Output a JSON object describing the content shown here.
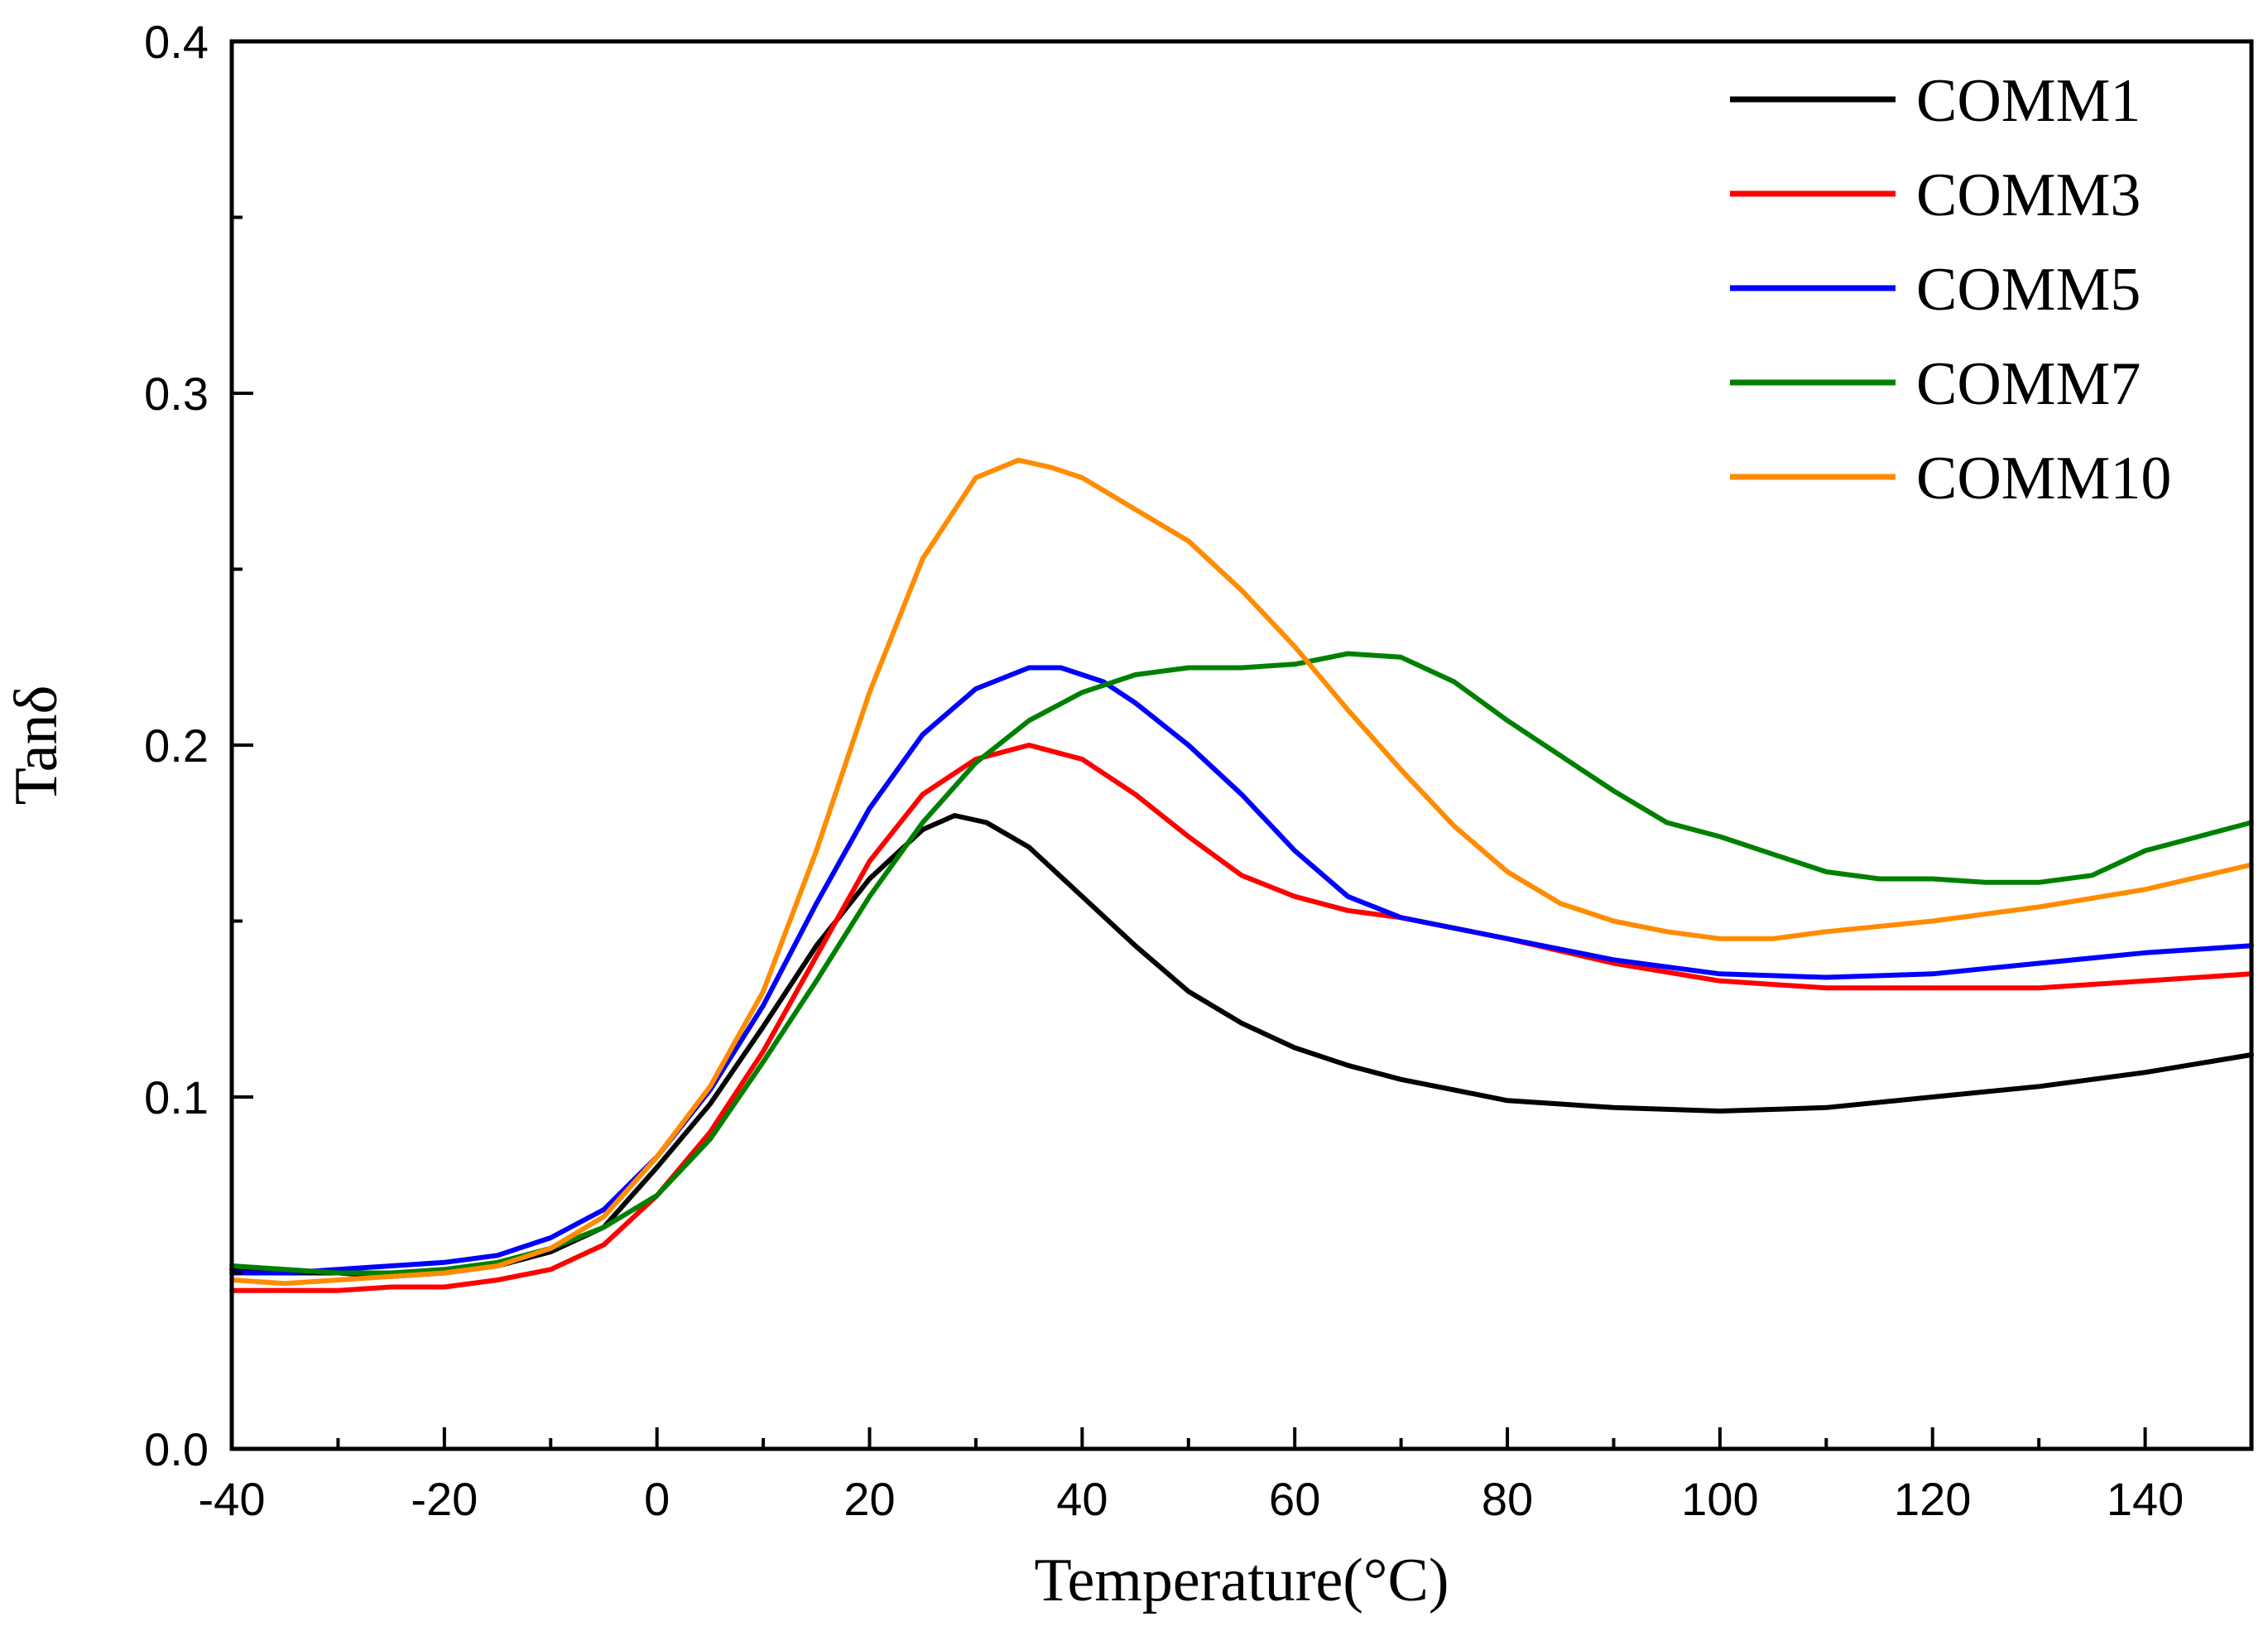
{
  "chart_data": {
    "type": "line",
    "title": "",
    "xlabel": "Temperature(°C)",
    "ylabel": "Tanδ",
    "xlim": [
      -40,
      150
    ],
    "ylim": [
      0.0,
      0.4
    ],
    "x_ticks": [
      -40,
      -20,
      0,
      20,
      40,
      60,
      80,
      100,
      120,
      140
    ],
    "x_tick_labels": [
      "-40",
      "-20",
      "0",
      "20",
      "40",
      "60",
      "80",
      "100",
      "120",
      "140"
    ],
    "y_ticks": [
      0.0,
      0.1,
      0.2,
      0.3,
      0.4
    ],
    "y_tick_labels": [
      "0.0",
      "0.1",
      "0.2",
      "0.3",
      "0.4"
    ],
    "grid": false,
    "legend_position": "top-right",
    "series": [
      {
        "name": "COMM1",
        "color": "#000000",
        "points": [
          [
            -40,
            0.051
          ],
          [
            -35,
            0.05
          ],
          [
            -30,
            0.05
          ],
          [
            -25,
            0.049
          ],
          [
            -20,
            0.05
          ],
          [
            -15,
            0.052
          ],
          [
            -10,
            0.056
          ],
          [
            -5,
            0.063
          ],
          [
            0,
            0.08
          ],
          [
            5,
            0.098
          ],
          [
            10,
            0.12
          ],
          [
            15,
            0.143
          ],
          [
            20,
            0.162
          ],
          [
            25,
            0.176
          ],
          [
            28,
            0.18
          ],
          [
            31,
            0.178
          ],
          [
            35,
            0.171
          ],
          [
            40,
            0.157
          ],
          [
            45,
            0.143
          ],
          [
            50,
            0.13
          ],
          [
            55,
            0.121
          ],
          [
            60,
            0.114
          ],
          [
            65,
            0.109
          ],
          [
            70,
            0.105
          ],
          [
            75,
            0.102
          ],
          [
            80,
            0.099
          ],
          [
            90,
            0.097
          ],
          [
            100,
            0.096
          ],
          [
            110,
            0.097
          ],
          [
            120,
            0.1
          ],
          [
            130,
            0.103
          ],
          [
            140,
            0.107
          ],
          [
            150,
            0.112
          ]
        ]
      },
      {
        "name": "COMM3",
        "color": "#ff0000",
        "points": [
          [
            -40,
            0.045
          ],
          [
            -35,
            0.045
          ],
          [
            -30,
            0.045
          ],
          [
            -25,
            0.046
          ],
          [
            -20,
            0.046
          ],
          [
            -15,
            0.048
          ],
          [
            -10,
            0.051
          ],
          [
            -5,
            0.058
          ],
          [
            0,
            0.072
          ],
          [
            5,
            0.09
          ],
          [
            10,
            0.113
          ],
          [
            15,
            0.14
          ],
          [
            20,
            0.167
          ],
          [
            25,
            0.186
          ],
          [
            30,
            0.196
          ],
          [
            35,
            0.2
          ],
          [
            40,
            0.196
          ],
          [
            45,
            0.186
          ],
          [
            50,
            0.174
          ],
          [
            55,
            0.163
          ],
          [
            60,
            0.157
          ],
          [
            65,
            0.153
          ],
          [
            70,
            0.151
          ],
          [
            80,
            0.145
          ],
          [
            90,
            0.138
          ],
          [
            100,
            0.133
          ],
          [
            110,
            0.131
          ],
          [
            120,
            0.131
          ],
          [
            130,
            0.131
          ],
          [
            140,
            0.133
          ],
          [
            150,
            0.135
          ]
        ]
      },
      {
        "name": "COMM5",
        "color": "#0000ff",
        "points": [
          [
            -40,
            0.05
          ],
          [
            -35,
            0.05
          ],
          [
            -30,
            0.051
          ],
          [
            -25,
            0.052
          ],
          [
            -20,
            0.053
          ],
          [
            -15,
            0.055
          ],
          [
            -10,
            0.06
          ],
          [
            -5,
            0.068
          ],
          [
            0,
            0.083
          ],
          [
            5,
            0.102
          ],
          [
            10,
            0.126
          ],
          [
            15,
            0.155
          ],
          [
            20,
            0.182
          ],
          [
            25,
            0.203
          ],
          [
            30,
            0.216
          ],
          [
            35,
            0.222
          ],
          [
            38,
            0.222
          ],
          [
            42,
            0.218
          ],
          [
            45,
            0.212
          ],
          [
            50,
            0.2
          ],
          [
            55,
            0.186
          ],
          [
            60,
            0.17
          ],
          [
            65,
            0.157
          ],
          [
            70,
            0.151
          ],
          [
            80,
            0.145
          ],
          [
            90,
            0.139
          ],
          [
            100,
            0.135
          ],
          [
            110,
            0.134
          ],
          [
            120,
            0.135
          ],
          [
            130,
            0.138
          ],
          [
            140,
            0.141
          ],
          [
            150,
            0.143
          ]
        ]
      },
      {
        "name": "COMM7",
        "color": "#008000",
        "points": [
          [
            -40,
            0.052
          ],
          [
            -35,
            0.051
          ],
          [
            -30,
            0.05
          ],
          [
            -25,
            0.05
          ],
          [
            -20,
            0.051
          ],
          [
            -15,
            0.053
          ],
          [
            -10,
            0.057
          ],
          [
            -5,
            0.063
          ],
          [
            0,
            0.072
          ],
          [
            5,
            0.088
          ],
          [
            10,
            0.11
          ],
          [
            15,
            0.133
          ],
          [
            20,
            0.157
          ],
          [
            25,
            0.178
          ],
          [
            30,
            0.195
          ],
          [
            35,
            0.207
          ],
          [
            40,
            0.215
          ],
          [
            45,
            0.22
          ],
          [
            50,
            0.222
          ],
          [
            55,
            0.222
          ],
          [
            60,
            0.223
          ],
          [
            65,
            0.226
          ],
          [
            70,
            0.225
          ],
          [
            75,
            0.218
          ],
          [
            80,
            0.207
          ],
          [
            85,
            0.197
          ],
          [
            90,
            0.187
          ],
          [
            95,
            0.178
          ],
          [
            100,
            0.174
          ],
          [
            105,
            0.169
          ],
          [
            110,
            0.164
          ],
          [
            115,
            0.162
          ],
          [
            120,
            0.162
          ],
          [
            125,
            0.161
          ],
          [
            130,
            0.161
          ],
          [
            135,
            0.163
          ],
          [
            140,
            0.17
          ],
          [
            145,
            0.174
          ],
          [
            150,
            0.178
          ]
        ]
      },
      {
        "name": "COMM10",
        "color": "#ff8c00",
        "points": [
          [
            -40,
            0.048
          ],
          [
            -35,
            0.047
          ],
          [
            -30,
            0.048
          ],
          [
            -25,
            0.049
          ],
          [
            -20,
            0.05
          ],
          [
            -15,
            0.052
          ],
          [
            -10,
            0.057
          ],
          [
            -5,
            0.066
          ],
          [
            0,
            0.083
          ],
          [
            5,
            0.103
          ],
          [
            10,
            0.13
          ],
          [
            15,
            0.17
          ],
          [
            20,
            0.215
          ],
          [
            25,
            0.253
          ],
          [
            30,
            0.276
          ],
          [
            34,
            0.281
          ],
          [
            37,
            0.279
          ],
          [
            40,
            0.276
          ],
          [
            45,
            0.267
          ],
          [
            50,
            0.258
          ],
          [
            55,
            0.244
          ],
          [
            60,
            0.228
          ],
          [
            65,
            0.21
          ],
          [
            70,
            0.193
          ],
          [
            75,
            0.177
          ],
          [
            80,
            0.164
          ],
          [
            85,
            0.155
          ],
          [
            90,
            0.15
          ],
          [
            95,
            0.147
          ],
          [
            100,
            0.145
          ],
          [
            105,
            0.145
          ],
          [
            110,
            0.147
          ],
          [
            120,
            0.15
          ],
          [
            130,
            0.154
          ],
          [
            140,
            0.159
          ],
          [
            150,
            0.166
          ]
        ]
      }
    ]
  }
}
